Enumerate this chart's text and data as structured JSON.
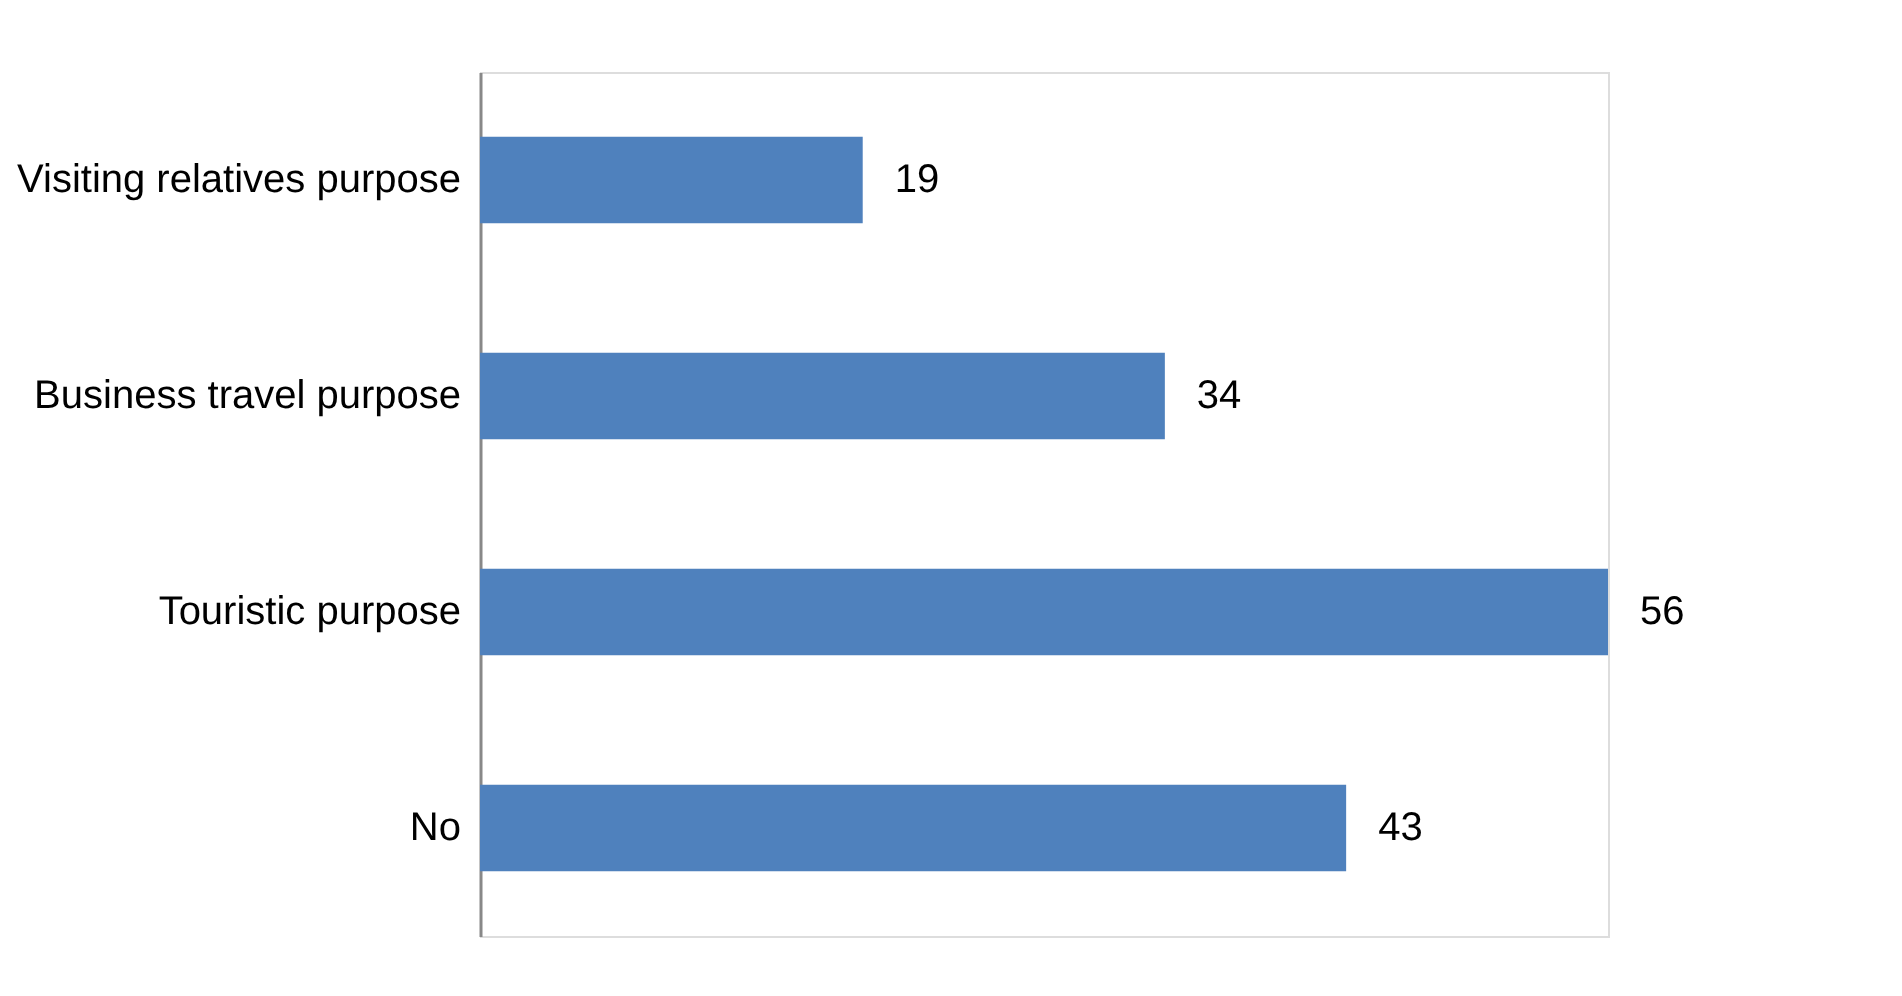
{
  "chart_data": {
    "type": "bar",
    "orientation": "horizontal",
    "categories": [
      "Visiting relatives purpose",
      "Business travel purpose",
      "Touristic purpose",
      "No"
    ],
    "values": [
      19,
      34,
      56,
      43
    ],
    "color": "#4f81bd",
    "data_labels": true,
    "tick_labels": "y"
  }
}
